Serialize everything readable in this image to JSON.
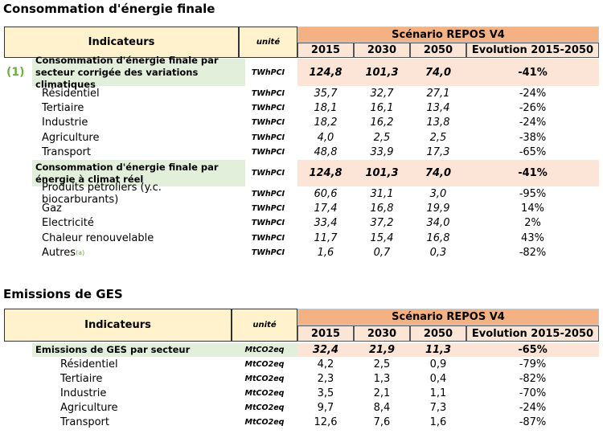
{
  "sections": [
    {
      "title": "Consommation d'énergie finale",
      "table": {
        "headers": {
          "indicators": "Indicateurs",
          "unit": "unité",
          "scenario": "Scénario REPOS V4",
          "columns": [
            "2015",
            "2030",
            "2050",
            "Evolution 2015-2050"
          ]
        },
        "groups": [
          {
            "marker": "(1)",
            "label": "Consommation d'énergie finale par secteur corrigée des variations climatiques",
            "unit": "TWhPCI",
            "values": [
              "124,8",
              "101,3",
              "74,0",
              "-41%"
            ],
            "items": [
              {
                "label": "Résidentiel",
                "unit": "TWhPCI",
                "values": [
                  "35,7",
                  "32,7",
                  "27,1",
                  "-24%"
                ]
              },
              {
                "label": "Tertiaire",
                "unit": "TWhPCI",
                "values": [
                  "18,1",
                  "16,1",
                  "13,4",
                  "-26%"
                ]
              },
              {
                "label": "Industrie",
                "unit": "TWhPCI",
                "values": [
                  "18,2",
                  "16,2",
                  "13,8",
                  "-24%"
                ]
              },
              {
                "label": "Agriculture",
                "unit": "TWhPCI",
                "values": [
                  "4,0",
                  "2,5",
                  "2,5",
                  "-38%"
                ]
              },
              {
                "label": "Transport",
                "unit": "TWhPCI",
                "values": [
                  "48,8",
                  "33,9",
                  "17,3",
                  "-65%"
                ]
              }
            ]
          },
          {
            "label": "Consommation d'énergie finale par énergie à climat réel",
            "unit": "TWhPCI",
            "values": [
              "124,8",
              "101,3",
              "74,0",
              "-41%"
            ],
            "items": [
              {
                "label": "Produits pétroliers (y.c. biocarburants)",
                "unit": "TWhPCI",
                "values": [
                  "60,6",
                  "31,1",
                  "3,0",
                  "-95%"
                ]
              },
              {
                "label": "Gaz",
                "unit": "TWhPCI",
                "values": [
                  "17,4",
                  "16,8",
                  "19,9",
                  "14%"
                ]
              },
              {
                "label": "Electricité",
                "unit": "TWhPCI",
                "values": [
                  "33,4",
                  "37,2",
                  "34,0",
                  "2%"
                ]
              },
              {
                "label": "Chaleur renouvelable",
                "unit": "TWhPCI",
                "values": [
                  "11,7",
                  "15,4",
                  "16,8",
                  "43%"
                ]
              },
              {
                "label": "Autres",
                "note": "(a)",
                "unit": "TWhPCI",
                "values": [
                  "1,6",
                  "0,7",
                  "0,3",
                  "-82%"
                ]
              }
            ]
          }
        ]
      }
    },
    {
      "title": "Emissions de GES",
      "table": {
        "headers": {
          "indicators": "Indicateurs",
          "unit": "unité",
          "scenario": "Scénario REPOS V4",
          "columns": [
            "2015",
            "2030",
            "2050",
            "Evolution 2015-2050"
          ]
        },
        "groups": [
          {
            "label": "Emissions de GES par secteur",
            "unit": "MtCO2eq",
            "values": [
              "32,4",
              "21,9",
              "11,3",
              "-65%"
            ],
            "items": [
              {
                "label": "Résidentiel",
                "unit": "MtCO2eq",
                "values": [
                  "4,2",
                  "2,5",
                  "0,9",
                  "-79%"
                ]
              },
              {
                "label": "Tertiaire",
                "unit": "MtCO2eq",
                "values": [
                  "2,3",
                  "1,3",
                  "0,4",
                  "-82%"
                ]
              },
              {
                "label": "Industrie",
                "unit": "MtCO2eq",
                "values": [
                  "3,5",
                  "2,1",
                  "1,1",
                  "-70%"
                ]
              },
              {
                "label": "Agriculture",
                "unit": "MtCO2eq",
                "values": [
                  "9,7",
                  "8,4",
                  "7,3",
                  "-24%"
                ]
              },
              {
                "label": "Transport",
                "unit": "MtCO2eq",
                "values": [
                  "12,6",
                  "7,6",
                  "1,6",
                  "-87%"
                ]
              }
            ]
          }
        ]
      }
    }
  ]
}
